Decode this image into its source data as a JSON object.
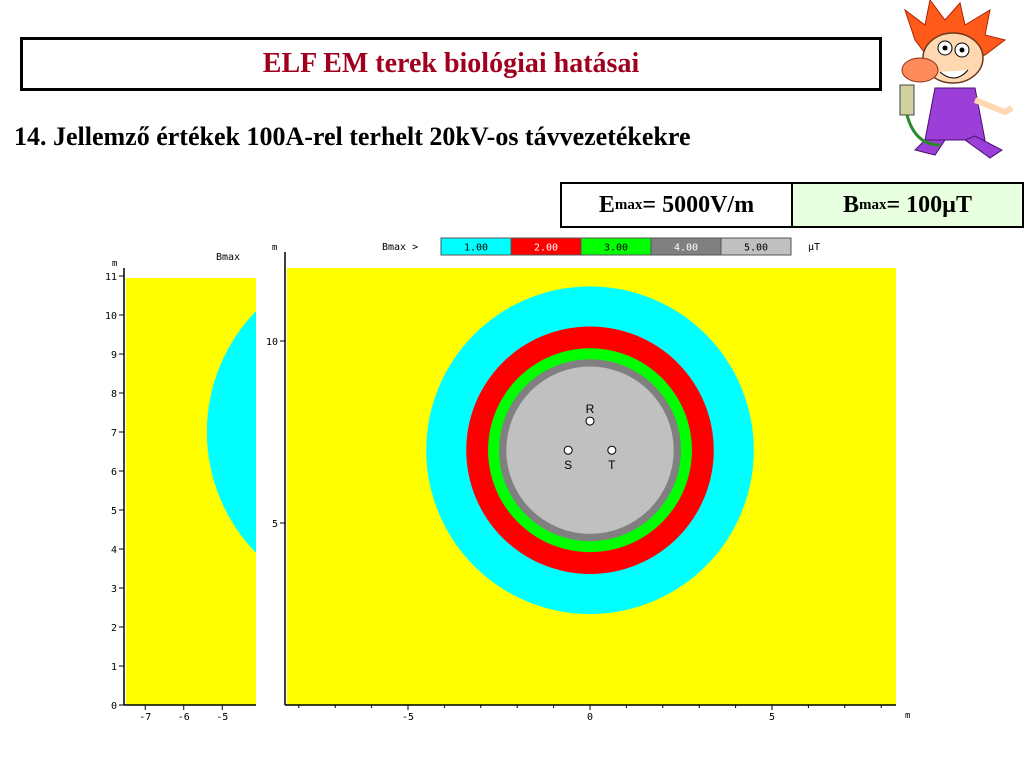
{
  "slide": {
    "title": "ELF EM terek biológiai hatásai",
    "subtitle": "14. Jellemző értékek 100A-rel terhelt 20kV-os távvezetékekre"
  },
  "values_table": {
    "e_symbol": "E",
    "e_sub": "max",
    "e_value": "= 5000V/m",
    "b_symbol": "B",
    "b_sub": "max",
    "b_value": "= 100µT"
  },
  "colors": {
    "yellow": "#ffff00",
    "cyan": "#00ffff",
    "red": "#ff0000",
    "green": "#00ff00",
    "dark_gray": "#808080",
    "light_gray": "#c0c0c0"
  },
  "chart_data": [
    {
      "type": "heatmap",
      "legend_label": "Bmax >",
      "legend_unit": "µT",
      "legend": [
        {
          "value": "1.00",
          "color": "#00ffff"
        },
        {
          "value": "2.00",
          "color": "#ff0000"
        },
        {
          "value": "3.00",
          "color": "#00ff00"
        },
        {
          "value": "4.00",
          "color": "#808080"
        },
        {
          "value": "5.00",
          "color": "#c0c0c0"
        }
      ],
      "x_unit": "m",
      "y_unit": "m",
      "x_ticks": [
        "-5",
        "0",
        "5"
      ],
      "y_ticks": [
        "5",
        "10"
      ],
      "xlim": [
        -8,
        8.3
      ],
      "ylim": [
        0,
        11.8
      ],
      "conductors": [
        {
          "label": "R",
          "x": 0,
          "y": 7.8
        },
        {
          "label": "S",
          "x": -0.6,
          "y": 7.0
        },
        {
          "label": "T",
          "x": 0.6,
          "y": 7.0
        }
      ],
      "contour_center": [
        0,
        7.0
      ],
      "contour_radii_m": [
        {
          "threshold": 1.0,
          "radius": 4.5
        },
        {
          "threshold": 2.0,
          "radius": 3.4
        },
        {
          "threshold": 3.0,
          "radius": 2.8
        },
        {
          "threshold": 4.0,
          "radius": 2.5
        },
        {
          "threshold": 5.0,
          "radius": 2.3
        }
      ]
    },
    {
      "type": "heatmap",
      "legend_label": "Bmax",
      "y_unit": "m",
      "x_ticks": [
        "-7",
        "-6",
        "-5"
      ],
      "y_ticks": [
        "0",
        "1",
        "2",
        "3",
        "4",
        "5",
        "6",
        "7",
        "8",
        "9",
        "10",
        "11"
      ],
      "xlim": [
        -7.5,
        -4.7
      ],
      "ylim": [
        0,
        11.2
      ]
    }
  ]
}
